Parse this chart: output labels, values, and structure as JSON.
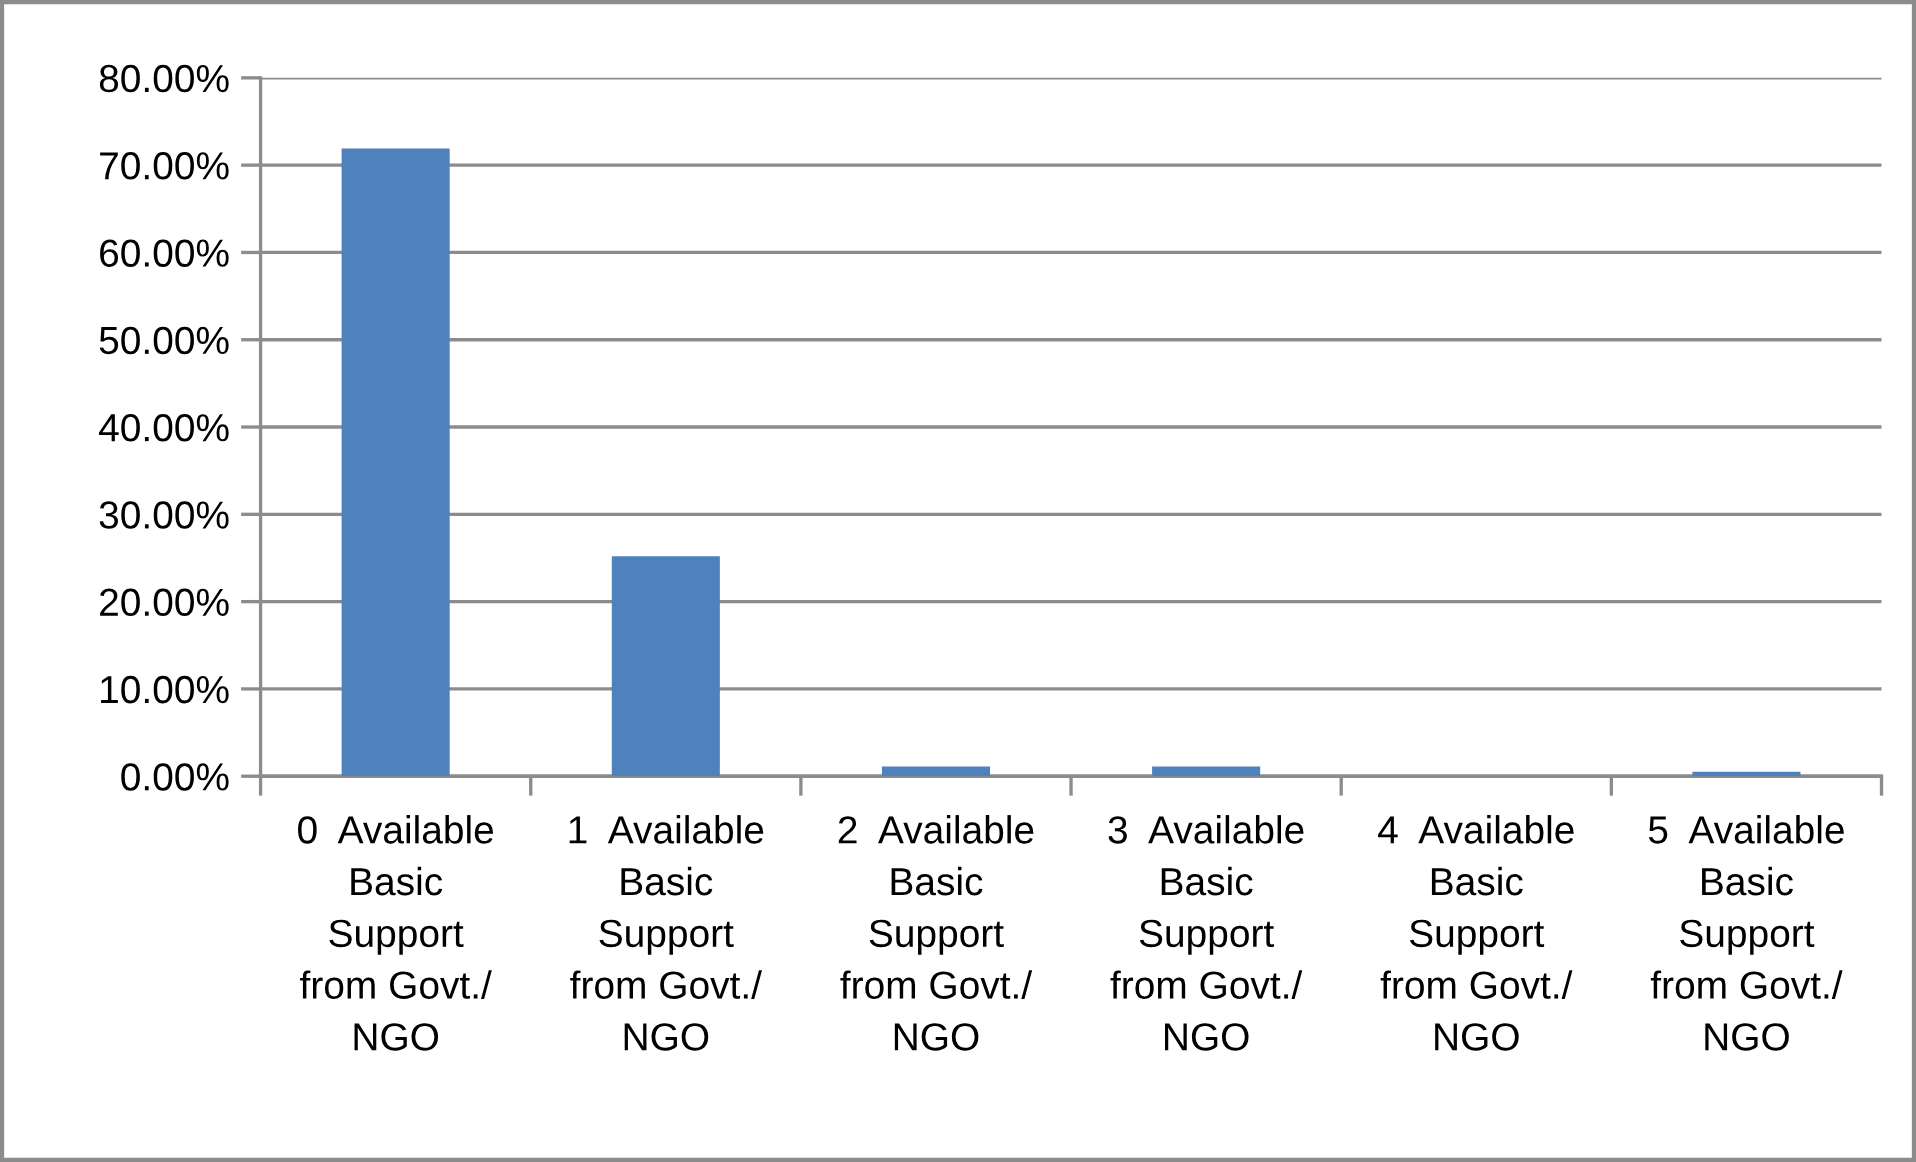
{
  "chart_data": {
    "type": "bar",
    "categories": [
      "0  Available\nBasic\nSupport\nfrom Govt./\nNGO",
      "1  Available\nBasic\nSupport\nfrom Govt./\nNGO",
      "2  Available\nBasic\nSupport\nfrom Govt./\nNGO",
      "3  Available\nBasic\nSupport\nfrom Govt./\nNGO",
      "4  Available\nBasic\nSupport\nfrom Govt./\nNGO",
      "5  Available\nBasic\nSupport\nfrom Govt./\nNGO"
    ],
    "values": [
      71.9,
      25.2,
      1.1,
      1.1,
      0,
      0.5
    ],
    "color": "#4f81bd",
    "ylim": [
      0,
      80
    ],
    "yticks": [
      {
        "value": 0,
        "label": "0.00%"
      },
      {
        "value": 10,
        "label": "10.00%"
      },
      {
        "value": 20,
        "label": "20.00%"
      },
      {
        "value": 30,
        "label": "30.00%"
      },
      {
        "value": 40,
        "label": "40.00%"
      },
      {
        "value": 50,
        "label": "50.00%"
      },
      {
        "value": 60,
        "label": "60.00%"
      },
      {
        "value": 70,
        "label": "70.00%"
      },
      {
        "value": 80,
        "label": "80.00%"
      }
    ],
    "grid": "y"
  }
}
